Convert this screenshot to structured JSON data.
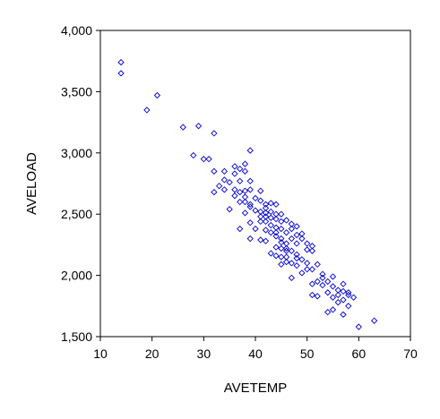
{
  "chart_data": {
    "type": "scatter",
    "title": "",
    "xlabel": "AVETEMP",
    "ylabel": "AVELOAD",
    "xlim": [
      10,
      70
    ],
    "ylim": [
      1500,
      4000
    ],
    "xticks": [
      10,
      20,
      30,
      40,
      50,
      60,
      70
    ],
    "yticks": [
      1500,
      2000,
      2500,
      3000,
      3500,
      4000
    ],
    "xtick_labels": [
      "10",
      "20",
      "30",
      "40",
      "50",
      "60",
      "70"
    ],
    "ytick_labels": [
      "1,500",
      "2,000",
      "2,500",
      "3,000",
      "3,500",
      "4,000"
    ],
    "grid": false,
    "marker": "diamond-open",
    "marker_color": "#0000cc",
    "points": [
      [
        14,
        3740
      ],
      [
        14,
        3650
      ],
      [
        21,
        3470
      ],
      [
        19,
        3350
      ],
      [
        26,
        3210
      ],
      [
        29,
        3220
      ],
      [
        32,
        3160
      ],
      [
        28,
        2980
      ],
      [
        30,
        2950
      ],
      [
        31,
        2950
      ],
      [
        39,
        3020
      ],
      [
        36,
        2890
      ],
      [
        38,
        2910
      ],
      [
        37,
        2870
      ],
      [
        34,
        2850
      ],
      [
        36,
        2830
      ],
      [
        32,
        2850
      ],
      [
        38,
        2850
      ],
      [
        34,
        2780
      ],
      [
        35,
        2760
      ],
      [
        37,
        2770
      ],
      [
        39,
        2770
      ],
      [
        33,
        2730
      ],
      [
        34,
        2700
      ],
      [
        36,
        2700
      ],
      [
        37,
        2680
      ],
      [
        38,
        2690
      ],
      [
        39,
        2700
      ],
      [
        41,
        2690
      ],
      [
        32,
        2680
      ],
      [
        36,
        2650
      ],
      [
        38,
        2640
      ],
      [
        40,
        2630
      ],
      [
        41,
        2610
      ],
      [
        38,
        2600
      ],
      [
        39,
        2580
      ],
      [
        37,
        2600
      ],
      [
        42,
        2580
      ],
      [
        43,
        2590
      ],
      [
        44,
        2580
      ],
      [
        42,
        2550
      ],
      [
        39,
        2560
      ],
      [
        40,
        2530
      ],
      [
        41,
        2520
      ],
      [
        43,
        2520
      ],
      [
        35,
        2540
      ],
      [
        38,
        2510
      ],
      [
        42,
        2510
      ],
      [
        44,
        2500
      ],
      [
        45,
        2500
      ],
      [
        42,
        2480
      ],
      [
        43,
        2470
      ],
      [
        44,
        2460
      ],
      [
        45,
        2440
      ],
      [
        46,
        2450
      ],
      [
        47,
        2420
      ],
      [
        39,
        2430
      ],
      [
        41,
        2440
      ],
      [
        43,
        2410
      ],
      [
        44,
        2390
      ],
      [
        40,
        2380
      ],
      [
        42,
        2370
      ],
      [
        45,
        2380
      ],
      [
        47,
        2380
      ],
      [
        48,
        2400
      ],
      [
        37,
        2380
      ],
      [
        43,
        2350
      ],
      [
        46,
        2350
      ],
      [
        48,
        2330
      ],
      [
        49,
        2340
      ],
      [
        44,
        2320
      ],
      [
        45,
        2300
      ],
      [
        47,
        2300
      ],
      [
        49,
        2300
      ],
      [
        39,
        2300
      ],
      [
        41,
        2290
      ],
      [
        42,
        2280
      ],
      [
        45,
        2270
      ],
      [
        46,
        2260
      ],
      [
        48,
        2260
      ],
      [
        50,
        2260
      ],
      [
        51,
        2240
      ],
      [
        44,
        2230
      ],
      [
        45,
        2220
      ],
      [
        46,
        2220
      ],
      [
        47,
        2200
      ],
      [
        50,
        2210
      ],
      [
        51,
        2200
      ],
      [
        43,
        2180
      ],
      [
        44,
        2160
      ],
      [
        46,
        2150
      ],
      [
        48,
        2140
      ],
      [
        49,
        2130
      ],
      [
        46,
        2110
      ],
      [
        47,
        2100
      ],
      [
        50,
        2100
      ],
      [
        52,
        2090
      ],
      [
        45,
        2090
      ],
      [
        48,
        2080
      ],
      [
        50,
        2050
      ],
      [
        51,
        2050
      ],
      [
        49,
        2020
      ],
      [
        53,
        1980
      ],
      [
        52,
        1950
      ],
      [
        54,
        1950
      ],
      [
        51,
        1930
      ],
      [
        53,
        1920
      ],
      [
        55,
        1910
      ],
      [
        57,
        1930
      ],
      [
        56,
        1880
      ],
      [
        57,
        1870
      ],
      [
        58,
        1860
      ],
      [
        54,
        1860
      ],
      [
        56,
        1840
      ],
      [
        58,
        1840
      ],
      [
        59,
        1820
      ],
      [
        52,
        1830
      ],
      [
        55,
        1820
      ],
      [
        57,
        1800
      ],
      [
        51,
        1840
      ],
      [
        56,
        1780
      ],
      [
        58,
        1750
      ],
      [
        55,
        1720
      ],
      [
        54,
        1700
      ],
      [
        57,
        1680
      ],
      [
        63,
        1630
      ],
      [
        60,
        1580
      ],
      [
        47,
        1980
      ],
      [
        53,
        2010
      ],
      [
        55,
        1990
      ],
      [
        41,
        2480
      ],
      [
        42,
        2440
      ],
      [
        44,
        2350
      ],
      [
        46,
        2200
      ],
      [
        48,
        2170
      ],
      [
        45,
        2150
      ]
    ]
  }
}
